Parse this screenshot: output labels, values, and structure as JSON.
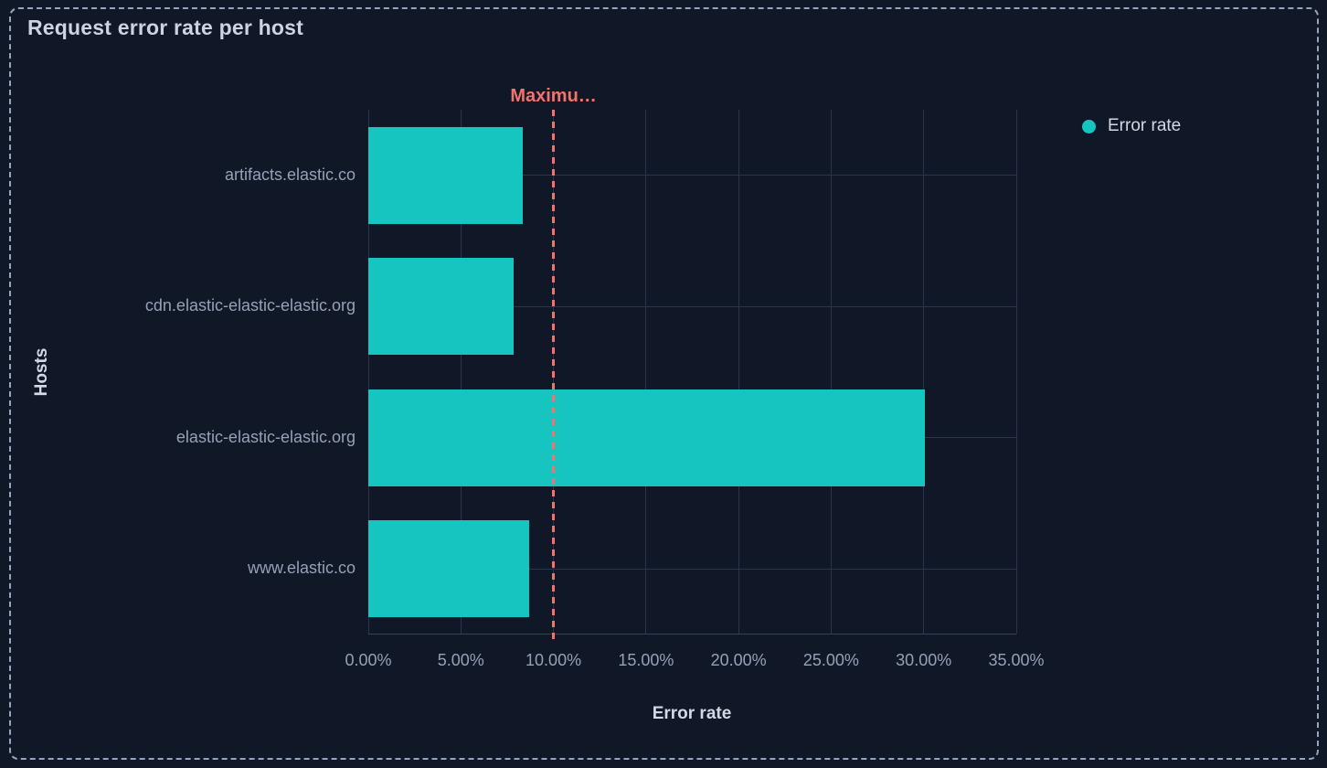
{
  "panel": {
    "title": "Request error rate per host",
    "border_color": "#96a5bd",
    "background_color": "#101726"
  },
  "legend": {
    "label": "Error rate",
    "dot_color": "#16c5c0",
    "position": "right"
  },
  "chart_data": {
    "type": "bar",
    "orientation": "horizontal",
    "title": "Request error rate per host",
    "xlabel": "Error rate",
    "ylabel": "Hosts",
    "categories": [
      "artifacts.elastic.co",
      "cdn.elastic-elastic-elastic.org",
      "elastic-elastic-elastic.org",
      "www.elastic.co"
    ],
    "series": [
      {
        "name": "Error rate",
        "values": [
          8.33,
          7.83,
          30.07,
          8.67
        ],
        "unit": "%"
      }
    ],
    "xlim": [
      0,
      35
    ],
    "x_tick_values": [
      0,
      5,
      10,
      15,
      20,
      25,
      30,
      35
    ],
    "x_tick_labels": [
      "0.00%",
      "5.00%",
      "10.00%",
      "15.00%",
      "20.00%",
      "25.00%",
      "30.00%",
      "35.00%"
    ],
    "grid": true,
    "legend_position": "right",
    "bar_color": "#16c5c0",
    "gridline_color": "#2a344c",
    "threshold": {
      "value": 10,
      "label": "Maximu…",
      "color": "#f3726b"
    }
  }
}
